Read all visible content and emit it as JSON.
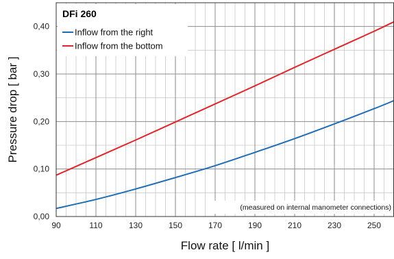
{
  "chart_data": {
    "type": "line",
    "title": "DFi 260",
    "xlabel": "Flow rate [ l/min ]",
    "ylabel": "Pressure drop [ bar ]",
    "xlim": [
      90,
      260
    ],
    "ylim": [
      0,
      0.45
    ],
    "xticks": [
      90,
      110,
      130,
      150,
      170,
      190,
      210,
      230,
      250
    ],
    "xtick_labels": [
      "90",
      "110",
      "130",
      "150",
      "170",
      "190",
      "210",
      "230",
      "250"
    ],
    "yticks": [
      0,
      0.1,
      0.2,
      0.3,
      0.4
    ],
    "ytick_labels": [
      "0,00",
      "0,10",
      "0,20",
      "0,30",
      "0,40"
    ],
    "x_minor_step": 5,
    "y_minor_step": 0.05,
    "grid": true,
    "legend_position": "top-left",
    "annotation": "(measured on internal manometer connections)",
    "series": [
      {
        "name": "Inflow from the right",
        "color": "#1f6db5",
        "x": [
          90,
          110,
          130,
          150,
          170,
          190,
          210,
          230,
          250,
          260
        ],
        "y": [
          0.017,
          0.036,
          0.058,
          0.082,
          0.107,
          0.135,
          0.164,
          0.195,
          0.227,
          0.244
        ]
      },
      {
        "name": "Inflow from the bottom",
        "color": "#e0262b",
        "x": [
          90,
          110,
          130,
          150,
          170,
          190,
          210,
          230,
          250,
          260
        ],
        "y": [
          0.087,
          0.124,
          0.161,
          0.199,
          0.237,
          0.275,
          0.314,
          0.352,
          0.39,
          0.41
        ]
      }
    ]
  }
}
